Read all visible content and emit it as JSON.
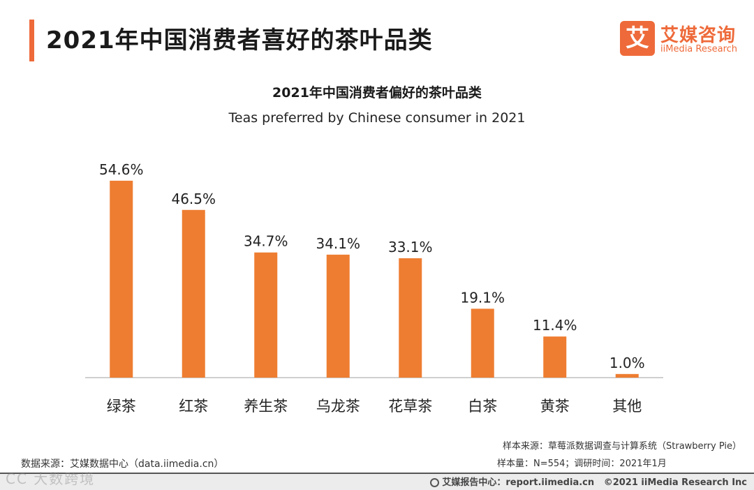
{
  "header": {
    "title": "2021年中国消费者喜好的茶叶品类"
  },
  "logo": {
    "mark": "艾",
    "name_cn": "艾媒咨询",
    "name_en": "iiMedia Research"
  },
  "colors": {
    "accent": "#ee6a3a",
    "bar": "#ee7d31",
    "axis": "#bfbfbf",
    "bottom_bar": "#ececec"
  },
  "chart_data": {
    "type": "bar",
    "title": "2021年中国消费者偏好的茶叶品类",
    "subtitle": "Teas preferred by Chinese consumer in 2021",
    "categories": [
      "绿茶",
      "红茶",
      "养生茶",
      "乌龙茶",
      "花草茶",
      "白茶",
      "黄茶",
      "其他"
    ],
    "values": [
      54.6,
      46.5,
      34.7,
      34.1,
      33.1,
      19.1,
      11.4,
      1.0
    ],
    "value_labels": [
      "54.6%",
      "46.5%",
      "34.7%",
      "34.1%",
      "33.1%",
      "19.1%",
      "11.4%",
      "1.0%"
    ],
    "unit": "%",
    "xlabel": "",
    "ylabel": "",
    "ylim": [
      0,
      60
    ],
    "grid": false
  },
  "footer": {
    "data_source": "数据来源：艾媒数据中心（data.iimedia.cn）",
    "sample_source": "样本来源：草莓派数据调查与计算系统（Strawberry Pie）",
    "sample_size": "样本量：N=554；调研时间：2021年1月",
    "report_center": "艾媒报告中心：report.iimedia.cn",
    "copyright": "©2021  iiMedia Research  Inc",
    "watermark": "CC 大数跨境"
  }
}
